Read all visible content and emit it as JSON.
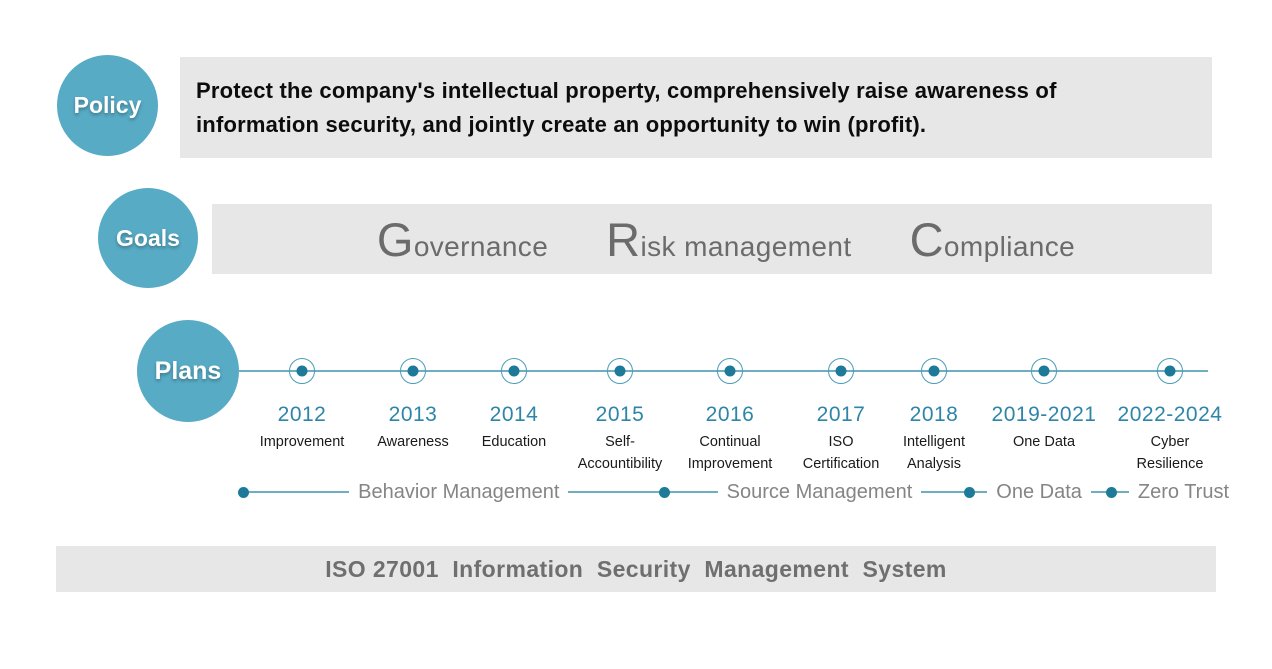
{
  "colors": {
    "accent_teal": "#57abc5",
    "node_dot_teal": "#1d7a99",
    "year_teal": "#2e85a8",
    "panel_gray": "#e7e7e7",
    "goal_text_gray": "#6b6b6b"
  },
  "policy": {
    "badge": "Policy",
    "lines": [
      "Protect the company's intellectual property, comprehensively raise awareness of",
      "information security, and jointly create an opportunity to win (profit)."
    ]
  },
  "goals": {
    "badge": "Goals",
    "items": [
      {
        "initial": "G",
        "rest": "overnance"
      },
      {
        "initial": "R",
        "rest": "isk management"
      },
      {
        "initial": "C",
        "rest": "ompliance"
      }
    ]
  },
  "plans": {
    "badge": "Plans",
    "milestones": [
      {
        "year": "2012",
        "label": "Improvement"
      },
      {
        "year": "2013",
        "label": "Awareness"
      },
      {
        "year": "2014",
        "label": "Education"
      },
      {
        "year": "2015",
        "label": "Self-Accountibility"
      },
      {
        "year": "2016",
        "label": "Continual Improvement"
      },
      {
        "year": "2017",
        "label": "ISO Certification"
      },
      {
        "year": "2018",
        "label": "Intelligent Analysis"
      },
      {
        "year": "2019-2021",
        "label": "One Data"
      },
      {
        "year": "2022-2024",
        "label": "Cyber Resilience"
      }
    ],
    "phases": [
      {
        "label": "Behavior Management"
      },
      {
        "label": "Source Management"
      },
      {
        "label": "One Data"
      },
      {
        "label": "Zero Trust"
      }
    ]
  },
  "footer": {
    "iso_banner": "ISO 27001  Information  Security  Management  System"
  }
}
